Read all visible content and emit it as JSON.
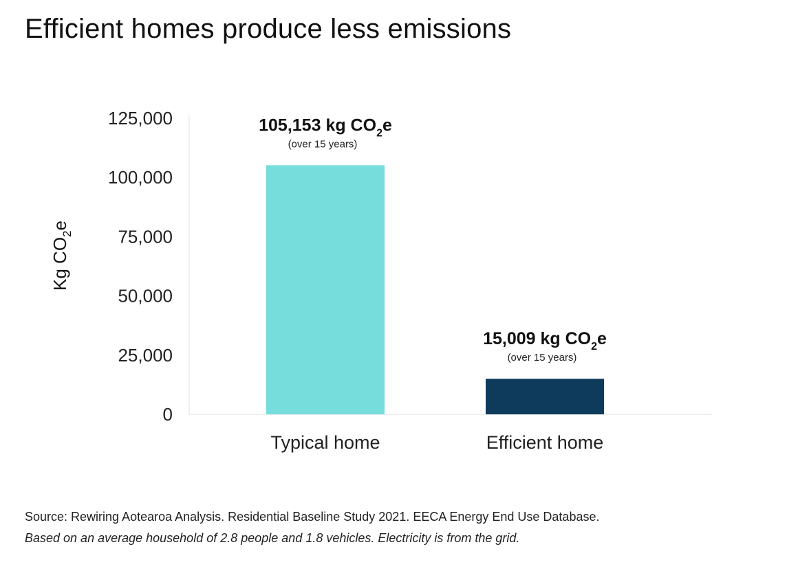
{
  "title": "Efficient homes produce less emissions",
  "source": "Source: Rewiring Aotearoa Analysis. Residential Baseline Study 2021. EECA Energy End Use Database.",
  "note": "Based on an average household of 2.8 people and 1.8 vehicles. Electricity is from the grid.",
  "chart_data": {
    "type": "bar",
    "categories": [
      "Typical home",
      "Efficient home"
    ],
    "values": [
      105153,
      15009
    ],
    "colors": [
      "#76dcdc",
      "#0e3a5c"
    ],
    "ylabel": {
      "main": "Kg CO",
      "sub": "2",
      "suffix": "e"
    },
    "ylim": [
      0,
      125000
    ],
    "yticks": [
      0,
      25000,
      50000,
      75000,
      100000,
      125000
    ],
    "ytick_labels": [
      "0",
      "25,000",
      "50,000",
      "75,000",
      "100,000",
      "125,000"
    ],
    "grid": false,
    "data_labels": [
      {
        "main": "105,153 kg CO",
        "sub": "2",
        "suffix": "e",
        "note": "(over 15 years)"
      },
      {
        "main": "15,009 kg CO",
        "sub": "2",
        "suffix": "e",
        "note": "(over 15 years)"
      }
    ]
  }
}
